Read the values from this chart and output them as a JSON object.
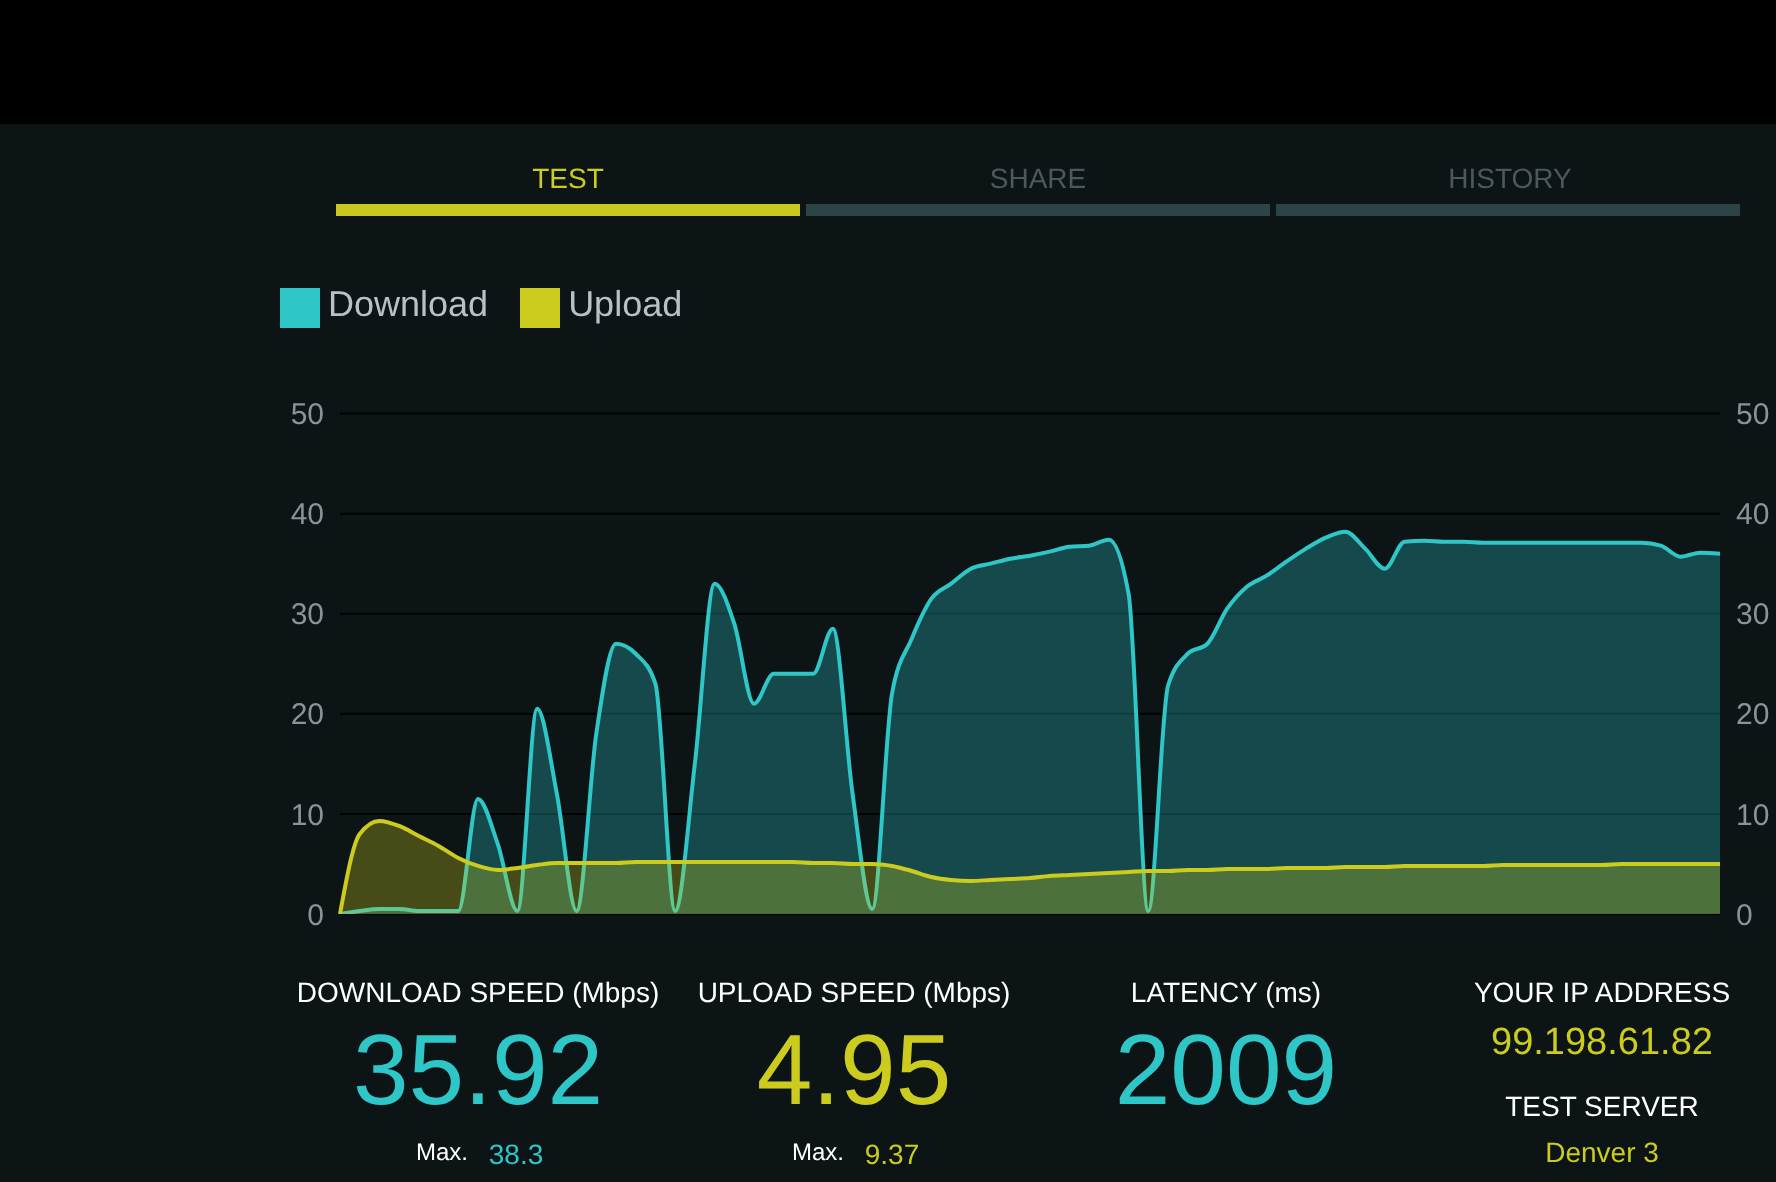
{
  "chart_data": {
    "type": "area",
    "categories": [
      null,
      null,
      null,
      null,
      null,
      null,
      null,
      null,
      null,
      null,
      null,
      null,
      null,
      null,
      null,
      null,
      null,
      null,
      null,
      null,
      null,
      null,
      null,
      null,
      null,
      null,
      null,
      null,
      null,
      null,
      null,
      null,
      null,
      null,
      null,
      null,
      null,
      null,
      null,
      null,
      null,
      null,
      null,
      null,
      null,
      null,
      null,
      null,
      null,
      null,
      null,
      null,
      null,
      null,
      null,
      null,
      null,
      null,
      null,
      null,
      null,
      null,
      null,
      null,
      null,
      null,
      null,
      null,
      null,
      null,
      null
    ],
    "series": [
      {
        "name": "Download",
        "color": "#2ec6c6",
        "values": [
          0,
          0.3,
          0.5,
          0.5,
          0.3,
          0.3,
          0.3,
          11.5,
          7,
          0.3,
          20.5,
          12,
          0.3,
          18,
          27,
          26,
          23,
          0.3,
          15,
          33,
          29,
          21,
          24,
          24,
          24,
          28.5,
          12,
          0.5,
          22,
          27.5,
          31.5,
          33,
          34.5,
          35,
          35.5,
          35.8,
          36.2,
          36.7,
          36.8,
          37.4,
          32,
          0.3,
          22.8,
          26,
          27,
          30.5,
          32.7,
          33.8,
          35.2,
          36.5,
          37.6,
          38.2,
          36.5,
          34.5,
          37.2,
          37.3,
          37.2,
          37.2,
          37.1,
          37.1,
          37.1,
          37.1,
          37.1,
          37.1,
          37.1,
          37.1,
          37.1,
          36.8,
          35.7,
          36.1,
          36
        ]
      },
      {
        "name": "Upload",
        "color": "#cccc1e",
        "values": [
          0,
          8,
          9.3,
          8.8,
          7.8,
          6.8,
          5.6,
          4.8,
          4.4,
          4.6,
          4.9,
          5.1,
          5.1,
          5.1,
          5.1,
          5.2,
          5.2,
          5.2,
          5.2,
          5.2,
          5.2,
          5.2,
          5.2,
          5.2,
          5.1,
          5.1,
          5,
          5,
          4.8,
          4.3,
          3.7,
          3.4,
          3.3,
          3.4,
          3.5,
          3.6,
          3.8,
          3.9,
          4,
          4.1,
          4.2,
          4.3,
          4.3,
          4.4,
          4.4,
          4.5,
          4.5,
          4.5,
          4.6,
          4.6,
          4.6,
          4.7,
          4.7,
          4.7,
          4.8,
          4.8,
          4.8,
          4.8,
          4.8,
          4.9,
          4.9,
          4.9,
          4.9,
          4.9,
          4.9,
          5,
          5,
          5,
          5,
          5,
          5
        ]
      }
    ],
    "ylim": [
      0,
      50
    ],
    "yticks": [
      0,
      10,
      20,
      30,
      40,
      50
    ],
    "y2lim": [
      0,
      50
    ],
    "y2ticks": [
      0,
      10,
      20,
      30,
      40,
      50
    ],
    "grid": "y",
    "legend": "top left",
    "tick_labels": "y",
    "annotations": [
      "TEST",
      "SHARE",
      "HISTORY",
      "DOWNLOAD SPEED (Mbps)",
      "35.92",
      "Max.",
      "38.3",
      "UPLOAD SPEED (Mbps)",
      "4.95",
      "Max.",
      "9.37",
      "LATENCY (ms)",
      "2009",
      "YOUR IP ADDRESS",
      "99.198.61.82",
      "TEST SERVER",
      "Denver 3"
    ]
  }
}
